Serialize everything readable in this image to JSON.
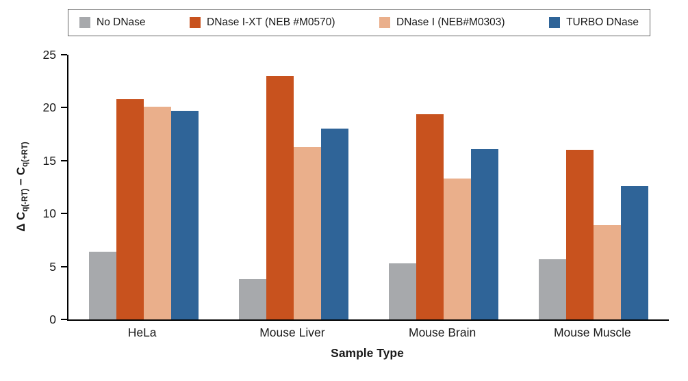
{
  "chart_data": {
    "type": "bar",
    "title": "",
    "xlabel": "Sample Type",
    "ylabel": "Δ Cq(-RT) − Cq(+RT)",
    "ylabel_parts": {
      "delta_c": "Δ C",
      "sub_neg_rt": "q(-RT)",
      "minus": " − ",
      "c": "C",
      "sub_pos_rt": "q(+RT)"
    },
    "categories": [
      "HeLa",
      "Mouse Liver",
      "Mouse Brain",
      "Mouse Muscle"
    ],
    "series": [
      {
        "name": "No DNase",
        "color": "#a7a9ac",
        "values": [
          6.4,
          3.8,
          5.3,
          5.7
        ]
      },
      {
        "name": "DNase I-XT (NEB #M0570)",
        "color": "#c8521e",
        "values": [
          20.8,
          23.0,
          19.4,
          16.0
        ]
      },
      {
        "name": "DNase I (NEB#M0303)",
        "color": "#eaaf8b",
        "values": [
          20.1,
          16.3,
          13.3,
          8.9
        ]
      },
      {
        "name": "TURBO DNase",
        "color": "#2f6498",
        "values": [
          19.7,
          18.0,
          16.1,
          12.6
        ]
      }
    ],
    "ylim": [
      0,
      25
    ],
    "yticks": [
      0,
      5,
      10,
      15,
      20,
      25
    ],
    "grid": false,
    "legend_position": "top",
    "axis_color": "#000000",
    "legend_border_color": "#636363"
  }
}
